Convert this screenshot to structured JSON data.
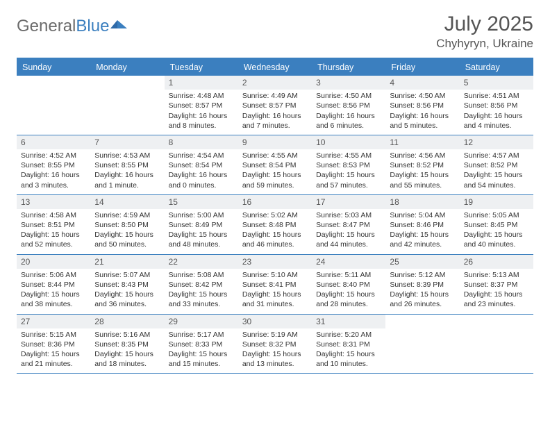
{
  "brand": {
    "part1": "General",
    "part2": "Blue"
  },
  "title": "July 2025",
  "location": "Chyhyryn, Ukraine",
  "colors": {
    "accent": "#3b7fbf",
    "text_muted": "#555555",
    "text": "#333333",
    "daynum_bg": "#eef0f2",
    "bg": "#ffffff"
  },
  "typography": {
    "title_fontsize": 30,
    "location_fontsize": 17,
    "dow_fontsize": 12.5,
    "cell_fontsize": 10.5,
    "daynum_fontsize": 12
  },
  "days_of_week": [
    "Sunday",
    "Monday",
    "Tuesday",
    "Wednesday",
    "Thursday",
    "Friday",
    "Saturday"
  ],
  "weeks": [
    [
      {
        "n": "",
        "sunrise": "",
        "sunset": "",
        "daylight": ""
      },
      {
        "n": "",
        "sunrise": "",
        "sunset": "",
        "daylight": ""
      },
      {
        "n": "1",
        "sunrise": "Sunrise: 4:48 AM",
        "sunset": "Sunset: 8:57 PM",
        "daylight": "Daylight: 16 hours and 8 minutes."
      },
      {
        "n": "2",
        "sunrise": "Sunrise: 4:49 AM",
        "sunset": "Sunset: 8:57 PM",
        "daylight": "Daylight: 16 hours and 7 minutes."
      },
      {
        "n": "3",
        "sunrise": "Sunrise: 4:50 AM",
        "sunset": "Sunset: 8:56 PM",
        "daylight": "Daylight: 16 hours and 6 minutes."
      },
      {
        "n": "4",
        "sunrise": "Sunrise: 4:50 AM",
        "sunset": "Sunset: 8:56 PM",
        "daylight": "Daylight: 16 hours and 5 minutes."
      },
      {
        "n": "5",
        "sunrise": "Sunrise: 4:51 AM",
        "sunset": "Sunset: 8:56 PM",
        "daylight": "Daylight: 16 hours and 4 minutes."
      }
    ],
    [
      {
        "n": "6",
        "sunrise": "Sunrise: 4:52 AM",
        "sunset": "Sunset: 8:55 PM",
        "daylight": "Daylight: 16 hours and 3 minutes."
      },
      {
        "n": "7",
        "sunrise": "Sunrise: 4:53 AM",
        "sunset": "Sunset: 8:55 PM",
        "daylight": "Daylight: 16 hours and 1 minute."
      },
      {
        "n": "8",
        "sunrise": "Sunrise: 4:54 AM",
        "sunset": "Sunset: 8:54 PM",
        "daylight": "Daylight: 16 hours and 0 minutes."
      },
      {
        "n": "9",
        "sunrise": "Sunrise: 4:55 AM",
        "sunset": "Sunset: 8:54 PM",
        "daylight": "Daylight: 15 hours and 59 minutes."
      },
      {
        "n": "10",
        "sunrise": "Sunrise: 4:55 AM",
        "sunset": "Sunset: 8:53 PM",
        "daylight": "Daylight: 15 hours and 57 minutes."
      },
      {
        "n": "11",
        "sunrise": "Sunrise: 4:56 AM",
        "sunset": "Sunset: 8:52 PM",
        "daylight": "Daylight: 15 hours and 55 minutes."
      },
      {
        "n": "12",
        "sunrise": "Sunrise: 4:57 AM",
        "sunset": "Sunset: 8:52 PM",
        "daylight": "Daylight: 15 hours and 54 minutes."
      }
    ],
    [
      {
        "n": "13",
        "sunrise": "Sunrise: 4:58 AM",
        "sunset": "Sunset: 8:51 PM",
        "daylight": "Daylight: 15 hours and 52 minutes."
      },
      {
        "n": "14",
        "sunrise": "Sunrise: 4:59 AM",
        "sunset": "Sunset: 8:50 PM",
        "daylight": "Daylight: 15 hours and 50 minutes."
      },
      {
        "n": "15",
        "sunrise": "Sunrise: 5:00 AM",
        "sunset": "Sunset: 8:49 PM",
        "daylight": "Daylight: 15 hours and 48 minutes."
      },
      {
        "n": "16",
        "sunrise": "Sunrise: 5:02 AM",
        "sunset": "Sunset: 8:48 PM",
        "daylight": "Daylight: 15 hours and 46 minutes."
      },
      {
        "n": "17",
        "sunrise": "Sunrise: 5:03 AM",
        "sunset": "Sunset: 8:47 PM",
        "daylight": "Daylight: 15 hours and 44 minutes."
      },
      {
        "n": "18",
        "sunrise": "Sunrise: 5:04 AM",
        "sunset": "Sunset: 8:46 PM",
        "daylight": "Daylight: 15 hours and 42 minutes."
      },
      {
        "n": "19",
        "sunrise": "Sunrise: 5:05 AM",
        "sunset": "Sunset: 8:45 PM",
        "daylight": "Daylight: 15 hours and 40 minutes."
      }
    ],
    [
      {
        "n": "20",
        "sunrise": "Sunrise: 5:06 AM",
        "sunset": "Sunset: 8:44 PM",
        "daylight": "Daylight: 15 hours and 38 minutes."
      },
      {
        "n": "21",
        "sunrise": "Sunrise: 5:07 AM",
        "sunset": "Sunset: 8:43 PM",
        "daylight": "Daylight: 15 hours and 36 minutes."
      },
      {
        "n": "22",
        "sunrise": "Sunrise: 5:08 AM",
        "sunset": "Sunset: 8:42 PM",
        "daylight": "Daylight: 15 hours and 33 minutes."
      },
      {
        "n": "23",
        "sunrise": "Sunrise: 5:10 AM",
        "sunset": "Sunset: 8:41 PM",
        "daylight": "Daylight: 15 hours and 31 minutes."
      },
      {
        "n": "24",
        "sunrise": "Sunrise: 5:11 AM",
        "sunset": "Sunset: 8:40 PM",
        "daylight": "Daylight: 15 hours and 28 minutes."
      },
      {
        "n": "25",
        "sunrise": "Sunrise: 5:12 AM",
        "sunset": "Sunset: 8:39 PM",
        "daylight": "Daylight: 15 hours and 26 minutes."
      },
      {
        "n": "26",
        "sunrise": "Sunrise: 5:13 AM",
        "sunset": "Sunset: 8:37 PM",
        "daylight": "Daylight: 15 hours and 23 minutes."
      }
    ],
    [
      {
        "n": "27",
        "sunrise": "Sunrise: 5:15 AM",
        "sunset": "Sunset: 8:36 PM",
        "daylight": "Daylight: 15 hours and 21 minutes."
      },
      {
        "n": "28",
        "sunrise": "Sunrise: 5:16 AM",
        "sunset": "Sunset: 8:35 PM",
        "daylight": "Daylight: 15 hours and 18 minutes."
      },
      {
        "n": "29",
        "sunrise": "Sunrise: 5:17 AM",
        "sunset": "Sunset: 8:33 PM",
        "daylight": "Daylight: 15 hours and 15 minutes."
      },
      {
        "n": "30",
        "sunrise": "Sunrise: 5:19 AM",
        "sunset": "Sunset: 8:32 PM",
        "daylight": "Daylight: 15 hours and 13 minutes."
      },
      {
        "n": "31",
        "sunrise": "Sunrise: 5:20 AM",
        "sunset": "Sunset: 8:31 PM",
        "daylight": "Daylight: 15 hours and 10 minutes."
      },
      {
        "n": "",
        "sunrise": "",
        "sunset": "",
        "daylight": ""
      },
      {
        "n": "",
        "sunrise": "",
        "sunset": "",
        "daylight": ""
      }
    ]
  ]
}
